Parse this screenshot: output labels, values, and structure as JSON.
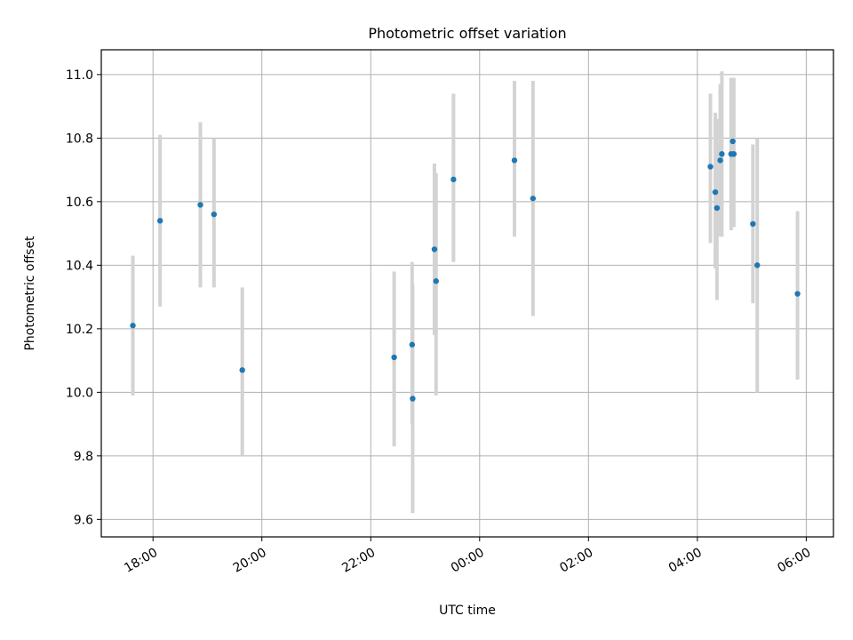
{
  "chart_data": {
    "type": "scatter",
    "title": "Photometric offset variation",
    "xlabel": "UTC time",
    "ylabel": "Photometric offset",
    "x_axis": {
      "unit": "hours_since_midnight_before_first_tick",
      "range": [
        17.05,
        30.5
      ],
      "ticks": [
        {
          "value": 18,
          "label": "18:00"
        },
        {
          "value": 20,
          "label": "20:00"
        },
        {
          "value": 22,
          "label": "22:00"
        },
        {
          "value": 24,
          "label": "00:00"
        },
        {
          "value": 26,
          "label": "02:00"
        },
        {
          "value": 28,
          "label": "04:00"
        },
        {
          "value": 30,
          "label": "06:00"
        }
      ]
    },
    "y_axis": {
      "range": [
        9.545,
        11.078
      ],
      "ticks": [
        9.6,
        9.8,
        10.0,
        10.2,
        10.4,
        10.6,
        10.8,
        11.0
      ],
      "tick_labels": [
        "9.6",
        "9.8",
        "10.0",
        "10.2",
        "10.4",
        "10.6",
        "10.8",
        "11.0"
      ]
    },
    "grid": true,
    "colors": {
      "points": "#1f77b4",
      "error_bars": "#d3d3d3",
      "grid": "#b0b0b0"
    },
    "points": [
      {
        "time": "17:38",
        "x": 17.63,
        "y": 10.21,
        "lo": 9.99,
        "hi": 10.43
      },
      {
        "time": "18:08",
        "x": 18.13,
        "y": 10.54,
        "lo": 10.27,
        "hi": 10.81
      },
      {
        "time": "18:52",
        "x": 18.87,
        "y": 10.59,
        "lo": 10.33,
        "hi": 10.85
      },
      {
        "time": "19:07",
        "x": 19.12,
        "y": 10.56,
        "lo": 10.33,
        "hi": 10.8
      },
      {
        "time": "19:38",
        "x": 19.64,
        "y": 10.07,
        "lo": 9.8,
        "hi": 10.33
      },
      {
        "time": "22:26",
        "x": 22.43,
        "y": 10.11,
        "lo": 9.83,
        "hi": 10.38
      },
      {
        "time": "22:45",
        "x": 22.76,
        "y": 10.15,
        "lo": 9.9,
        "hi": 10.41
      },
      {
        "time": "22:46",
        "x": 22.77,
        "y": 9.98,
        "lo": 9.62,
        "hi": 10.34
      },
      {
        "time": "23:10",
        "x": 23.17,
        "y": 10.45,
        "lo": 10.18,
        "hi": 10.72
      },
      {
        "time": "23:12",
        "x": 23.2,
        "y": 10.35,
        "lo": 9.99,
        "hi": 10.69
      },
      {
        "time": "23:31",
        "x": 23.52,
        "y": 10.67,
        "lo": 10.41,
        "hi": 10.94
      },
      {
        "time": "00:38",
        "x": 24.64,
        "y": 10.73,
        "lo": 10.49,
        "hi": 10.98
      },
      {
        "time": "00:59",
        "x": 24.98,
        "y": 10.61,
        "lo": 10.24,
        "hi": 10.98
      },
      {
        "time": "04:14",
        "x": 28.24,
        "y": 10.71,
        "lo": 10.47,
        "hi": 10.94
      },
      {
        "time": "04:20",
        "x": 28.33,
        "y": 10.63,
        "lo": 10.39,
        "hi": 10.88
      },
      {
        "time": "04:21",
        "x": 28.36,
        "y": 10.58,
        "lo": 10.29,
        "hi": 10.86
      },
      {
        "time": "04:25",
        "x": 28.42,
        "y": 10.73,
        "lo": 10.49,
        "hi": 10.97
      },
      {
        "time": "04:27",
        "x": 28.45,
        "y": 10.75,
        "lo": 10.49,
        "hi": 11.01
      },
      {
        "time": "04:37",
        "x": 28.62,
        "y": 10.75,
        "lo": 10.51,
        "hi": 10.99
      },
      {
        "time": "04:39",
        "x": 28.65,
        "y": 10.79,
        "lo": 10.58,
        "hi": 10.99
      },
      {
        "time": "04:40",
        "x": 28.67,
        "y": 10.75,
        "lo": 10.52,
        "hi": 10.99
      },
      {
        "time": "05:01",
        "x": 29.02,
        "y": 10.53,
        "lo": 10.28,
        "hi": 10.78
      },
      {
        "time": "05:06",
        "x": 29.1,
        "y": 10.4,
        "lo": 10.0,
        "hi": 10.8
      },
      {
        "time": "05:50",
        "x": 29.84,
        "y": 10.31,
        "lo": 10.04,
        "hi": 10.57
      }
    ]
  }
}
